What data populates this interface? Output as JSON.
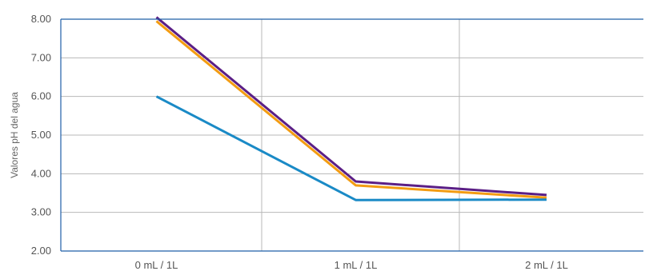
{
  "chart_data": {
    "type": "line",
    "title": "",
    "xlabel": "",
    "ylabel": "Valores pH del agua",
    "categories": [
      "0 mL / 1L",
      "1 mL / 1L",
      "2 mL / 1L"
    ],
    "ylim": [
      2,
      8
    ],
    "yticks": [
      "2.00",
      "3.00",
      "4.00",
      "5.00",
      "6.00",
      "7.00",
      "8.00"
    ],
    "grid": {
      "horizontal": true,
      "vertical": true
    },
    "legend": "none",
    "series": [
      {
        "values": [
          8.05,
          3.8,
          3.45
        ],
        "color": "#5b1f86"
      },
      {
        "values": [
          7.95,
          3.7,
          3.38
        ],
        "color": "#f39c12"
      },
      {
        "values": [
          6.0,
          3.32,
          3.33
        ],
        "color": "#1a8ac6"
      }
    ],
    "colors": {
      "frame": "#1f5fa8",
      "grid": "#b8b8b8"
    }
  }
}
